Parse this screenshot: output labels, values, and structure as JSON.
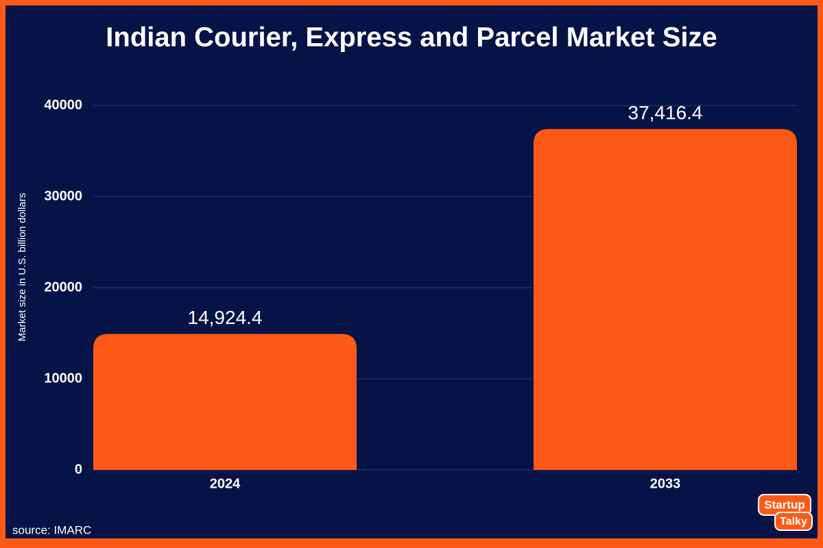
{
  "chart_data": {
    "type": "bar",
    "title": "Indian Courier, Express and Parcel Market Size",
    "y_label": "Market size in U.S. billion dollars",
    "categories": [
      "2024",
      "2033"
    ],
    "values": [
      14924.4,
      37416.4
    ],
    "value_labels": [
      "14,924.4",
      "37,416.4"
    ],
    "color": "#fc5a16",
    "ylim": [
      0,
      40000
    ],
    "yticks": [
      0,
      10000,
      20000,
      30000,
      40000
    ],
    "grid": true,
    "source": "source: IMARC",
    "logo": [
      "Startup",
      "Talky"
    ]
  }
}
